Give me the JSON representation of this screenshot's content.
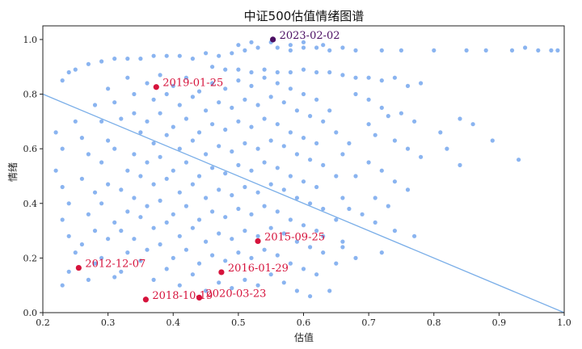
{
  "chart_data": {
    "type": "scatter",
    "title": "中证500估值情绪图谱",
    "xlabel": "估值",
    "ylabel": "情绪",
    "xlim": [
      0.2,
      1.0
    ],
    "ylim": [
      0.0,
      1.05
    ],
    "xticks": [
      "0.2",
      "0.3",
      "0.4",
      "0.5",
      "0.6",
      "0.7",
      "0.8",
      "0.9",
      "1.0"
    ],
    "yticks": [
      "0.0",
      "0.2",
      "0.4",
      "0.6",
      "0.8",
      "1.0"
    ],
    "grid": false,
    "colors": {
      "points": "#8ab4f0",
      "trendline": "#7aaee8",
      "highlight": "#d6133c",
      "latest": "#4b0f63"
    },
    "trendline": {
      "x": [
        0.2,
        1.0
      ],
      "y": [
        0.8,
        0.0
      ]
    },
    "highlights": [
      {
        "label": "2023-02-02",
        "x": 0.553,
        "y": 1.0,
        "color": "#4b0f63"
      },
      {
        "label": "2019-01-25",
        "x": 0.374,
        "y": 0.826,
        "color": "#d6133c"
      },
      {
        "label": "2015-09-25",
        "x": 0.53,
        "y": 0.262,
        "color": "#d6133c"
      },
      {
        "label": "2016-01-29",
        "x": 0.474,
        "y": 0.148,
        "color": "#d6133c"
      },
      {
        "label": "2012-12-07",
        "x": 0.255,
        "y": 0.164,
        "color": "#d6133c"
      },
      {
        "label": "2018-10-19",
        "x": 0.358,
        "y": 0.048,
        "color": "#d6133c"
      },
      {
        "label": "2020-03-23",
        "x": 0.44,
        "y": 0.055,
        "color": "#d6133c"
      }
    ],
    "scatter_points": [
      [
        0.23,
        0.85
      ],
      [
        0.24,
        0.88
      ],
      [
        0.25,
        0.89
      ],
      [
        0.27,
        0.91
      ],
      [
        0.29,
        0.92
      ],
      [
        0.31,
        0.93
      ],
      [
        0.33,
        0.93
      ],
      [
        0.35,
        0.93
      ],
      [
        0.37,
        0.94
      ],
      [
        0.39,
        0.94
      ],
      [
        0.41,
        0.94
      ],
      [
        0.43,
        0.93
      ],
      [
        0.45,
        0.95
      ],
      [
        0.47,
        0.94
      ],
      [
        0.49,
        0.95
      ],
      [
        0.51,
        0.96
      ],
      [
        0.53,
        0.97
      ],
      [
        0.56,
        0.97
      ],
      [
        0.58,
        0.96
      ],
      [
        0.6,
        0.97
      ],
      [
        0.62,
        0.97
      ],
      [
        0.64,
        0.96
      ],
      [
        0.66,
        0.97
      ],
      [
        0.68,
        0.96
      ],
      [
        0.72,
        0.96
      ],
      [
        0.75,
        0.96
      ],
      [
        0.8,
        0.96
      ],
      [
        0.85,
        0.96
      ],
      [
        0.88,
        0.96
      ],
      [
        0.92,
        0.96
      ],
      [
        0.94,
        0.97
      ],
      [
        0.96,
        0.96
      ],
      [
        0.98,
        0.96
      ],
      [
        0.99,
        0.96
      ],
      [
        0.52,
        0.99
      ],
      [
        0.55,
        0.99
      ],
      [
        0.58,
        0.98
      ],
      [
        0.6,
        0.99
      ],
      [
        0.63,
        0.98
      ],
      [
        0.5,
        0.98
      ],
      [
        0.46,
        0.9
      ],
      [
        0.48,
        0.89
      ],
      [
        0.5,
        0.89
      ],
      [
        0.52,
        0.88
      ],
      [
        0.54,
        0.89
      ],
      [
        0.56,
        0.88
      ],
      [
        0.58,
        0.88
      ],
      [
        0.6,
        0.89
      ],
      [
        0.62,
        0.88
      ],
      [
        0.64,
        0.88
      ],
      [
        0.66,
        0.87
      ],
      [
        0.68,
        0.86
      ],
      [
        0.7,
        0.86
      ],
      [
        0.72,
        0.85
      ],
      [
        0.74,
        0.86
      ],
      [
        0.76,
        0.83
      ],
      [
        0.78,
        0.84
      ],
      [
        0.68,
        0.8
      ],
      [
        0.7,
        0.78
      ],
      [
        0.72,
        0.75
      ],
      [
        0.73,
        0.72
      ],
      [
        0.75,
        0.73
      ],
      [
        0.77,
        0.7
      ],
      [
        0.7,
        0.69
      ],
      [
        0.71,
        0.65
      ],
      [
        0.74,
        0.63
      ],
      [
        0.76,
        0.6
      ],
      [
        0.78,
        0.57
      ],
      [
        0.81,
        0.66
      ],
      [
        0.84,
        0.71
      ],
      [
        0.86,
        0.69
      ],
      [
        0.89,
        0.63
      ],
      [
        0.84,
        0.54
      ],
      [
        0.82,
        0.6
      ],
      [
        0.93,
        0.56
      ],
      [
        0.7,
        0.55
      ],
      [
        0.72,
        0.52
      ],
      [
        0.74,
        0.48
      ],
      [
        0.76,
        0.45
      ],
      [
        0.71,
        0.42
      ],
      [
        0.73,
        0.39
      ],
      [
        0.69,
        0.36
      ],
      [
        0.71,
        0.33
      ],
      [
        0.74,
        0.3
      ],
      [
        0.77,
        0.28
      ],
      [
        0.72,
        0.22
      ],
      [
        0.68,
        0.2
      ],
      [
        0.65,
        0.18
      ],
      [
        0.66,
        0.24
      ],
      [
        0.63,
        0.28
      ],
      [
        0.22,
        0.66
      ],
      [
        0.23,
        0.6
      ],
      [
        0.22,
        0.52
      ],
      [
        0.23,
        0.46
      ],
      [
        0.24,
        0.4
      ],
      [
        0.23,
        0.34
      ],
      [
        0.24,
        0.28
      ],
      [
        0.25,
        0.22
      ],
      [
        0.24,
        0.15
      ],
      [
        0.23,
        0.1
      ],
      [
        0.25,
        0.7
      ],
      [
        0.26,
        0.64
      ],
      [
        0.27,
        0.58
      ],
      [
        0.26,
        0.49
      ],
      [
        0.28,
        0.44
      ],
      [
        0.27,
        0.36
      ],
      [
        0.28,
        0.3
      ],
      [
        0.26,
        0.25
      ],
      [
        0.28,
        0.18
      ],
      [
        0.27,
        0.12
      ],
      [
        0.28,
        0.76
      ],
      [
        0.29,
        0.7
      ],
      [
        0.3,
        0.63
      ],
      [
        0.29,
        0.55
      ],
      [
        0.3,
        0.47
      ],
      [
        0.29,
        0.4
      ],
      [
        0.31,
        0.33
      ],
      [
        0.3,
        0.27
      ],
      [
        0.29,
        0.2
      ],
      [
        0.31,
        0.13
      ],
      [
        0.3,
        0.82
      ],
      [
        0.31,
        0.77
      ],
      [
        0.32,
        0.71
      ],
      [
        0.31,
        0.6
      ],
      [
        0.33,
        0.52
      ],
      [
        0.32,
        0.45
      ],
      [
        0.33,
        0.37
      ],
      [
        0.32,
        0.3
      ],
      [
        0.33,
        0.22
      ],
      [
        0.32,
        0.15
      ],
      [
        0.33,
        0.86
      ],
      [
        0.34,
        0.8
      ],
      [
        0.34,
        0.73
      ],
      [
        0.35,
        0.66
      ],
      [
        0.34,
        0.58
      ],
      [
        0.35,
        0.5
      ],
      [
        0.34,
        0.42
      ],
      [
        0.35,
        0.35
      ],
      [
        0.34,
        0.27
      ],
      [
        0.35,
        0.19
      ],
      [
        0.36,
        0.84
      ],
      [
        0.37,
        0.78
      ],
      [
        0.36,
        0.7
      ],
      [
        0.37,
        0.62
      ],
      [
        0.36,
        0.55
      ],
      [
        0.37,
        0.47
      ],
      [
        0.36,
        0.39
      ],
      [
        0.37,
        0.31
      ],
      [
        0.36,
        0.23
      ],
      [
        0.37,
        0.12
      ],
      [
        0.38,
        0.87
      ],
      [
        0.39,
        0.8
      ],
      [
        0.38,
        0.73
      ],
      [
        0.39,
        0.65
      ],
      [
        0.38,
        0.57
      ],
      [
        0.39,
        0.49
      ],
      [
        0.38,
        0.41
      ],
      [
        0.39,
        0.33
      ],
      [
        0.38,
        0.25
      ],
      [
        0.39,
        0.16
      ],
      [
        0.4,
        0.83
      ],
      [
        0.41,
        0.76
      ],
      [
        0.4,
        0.68
      ],
      [
        0.41,
        0.6
      ],
      [
        0.4,
        0.52
      ],
      [
        0.41,
        0.44
      ],
      [
        0.4,
        0.36
      ],
      [
        0.41,
        0.28
      ],
      [
        0.4,
        0.2
      ],
      [
        0.41,
        0.1
      ],
      [
        0.42,
        0.86
      ],
      [
        0.43,
        0.79
      ],
      [
        0.42,
        0.71
      ],
      [
        0.43,
        0.63
      ],
      [
        0.42,
        0.55
      ],
      [
        0.43,
        0.47
      ],
      [
        0.42,
        0.39
      ],
      [
        0.43,
        0.31
      ],
      [
        0.42,
        0.23
      ],
      [
        0.43,
        0.14
      ],
      [
        0.44,
        0.81
      ],
      [
        0.45,
        0.74
      ],
      [
        0.44,
        0.66
      ],
      [
        0.45,
        0.58
      ],
      [
        0.44,
        0.5
      ],
      [
        0.45,
        0.42
      ],
      [
        0.44,
        0.34
      ],
      [
        0.45,
        0.26
      ],
      [
        0.44,
        0.18
      ],
      [
        0.45,
        0.08
      ],
      [
        0.46,
        0.84
      ],
      [
        0.47,
        0.77
      ],
      [
        0.46,
        0.69
      ],
      [
        0.47,
        0.61
      ],
      [
        0.46,
        0.53
      ],
      [
        0.47,
        0.45
      ],
      [
        0.46,
        0.37
      ],
      [
        0.47,
        0.29
      ],
      [
        0.46,
        0.21
      ],
      [
        0.47,
        0.11
      ],
      [
        0.48,
        0.82
      ],
      [
        0.49,
        0.75
      ],
      [
        0.48,
        0.67
      ],
      [
        0.49,
        0.59
      ],
      [
        0.48,
        0.51
      ],
      [
        0.49,
        0.43
      ],
      [
        0.48,
        0.35
      ],
      [
        0.49,
        0.27
      ],
      [
        0.48,
        0.19
      ],
      [
        0.49,
        0.09
      ],
      [
        0.5,
        0.85
      ],
      [
        0.51,
        0.78
      ],
      [
        0.5,
        0.7
      ],
      [
        0.51,
        0.62
      ],
      [
        0.5,
        0.54
      ],
      [
        0.51,
        0.46
      ],
      [
        0.5,
        0.38
      ],
      [
        0.51,
        0.3
      ],
      [
        0.5,
        0.22
      ],
      [
        0.51,
        0.12
      ],
      [
        0.52,
        0.83
      ],
      [
        0.53,
        0.76
      ],
      [
        0.52,
        0.68
      ],
      [
        0.53,
        0.6
      ],
      [
        0.52,
        0.52
      ],
      [
        0.53,
        0.44
      ],
      [
        0.52,
        0.36
      ],
      [
        0.53,
        0.28
      ],
      [
        0.52,
        0.2
      ],
      [
        0.53,
        0.1
      ],
      [
        0.54,
        0.86
      ],
      [
        0.55,
        0.79
      ],
      [
        0.54,
        0.71
      ],
      [
        0.55,
        0.63
      ],
      [
        0.54,
        0.55
      ],
      [
        0.55,
        0.47
      ],
      [
        0.54,
        0.39
      ],
      [
        0.55,
        0.31
      ],
      [
        0.54,
        0.23
      ],
      [
        0.55,
        0.14
      ],
      [
        0.56,
        0.84
      ],
      [
        0.57,
        0.77
      ],
      [
        0.56,
        0.69
      ],
      [
        0.57,
        0.61
      ],
      [
        0.56,
        0.53
      ],
      [
        0.57,
        0.45
      ],
      [
        0.56,
        0.37
      ],
      [
        0.57,
        0.29
      ],
      [
        0.56,
        0.21
      ],
      [
        0.57,
        0.11
      ],
      [
        0.58,
        0.82
      ],
      [
        0.59,
        0.74
      ],
      [
        0.58,
        0.66
      ],
      [
        0.59,
        0.58
      ],
      [
        0.58,
        0.5
      ],
      [
        0.59,
        0.42
      ],
      [
        0.58,
        0.34
      ],
      [
        0.59,
        0.26
      ],
      [
        0.58,
        0.18
      ],
      [
        0.59,
        0.08
      ],
      [
        0.6,
        0.8
      ],
      [
        0.61,
        0.72
      ],
      [
        0.6,
        0.64
      ],
      [
        0.61,
        0.56
      ],
      [
        0.6,
        0.48
      ],
      [
        0.61,
        0.4
      ],
      [
        0.6,
        0.32
      ],
      [
        0.61,
        0.24
      ],
      [
        0.6,
        0.16
      ],
      [
        0.61,
        0.06
      ],
      [
        0.62,
        0.78
      ],
      [
        0.63,
        0.7
      ],
      [
        0.62,
        0.62
      ],
      [
        0.63,
        0.54
      ],
      [
        0.62,
        0.46
      ],
      [
        0.63,
        0.38
      ],
      [
        0.62,
        0.3
      ],
      [
        0.63,
        0.22
      ],
      [
        0.62,
        0.14
      ],
      [
        0.64,
        0.08
      ],
      [
        0.64,
        0.74
      ],
      [
        0.65,
        0.66
      ],
      [
        0.66,
        0.58
      ],
      [
        0.65,
        0.5
      ],
      [
        0.66,
        0.42
      ],
      [
        0.65,
        0.34
      ],
      [
        0.66,
        0.26
      ],
      [
        0.67,
        0.62
      ],
      [
        0.68,
        0.5
      ],
      [
        0.67,
        0.38
      ]
    ]
  }
}
